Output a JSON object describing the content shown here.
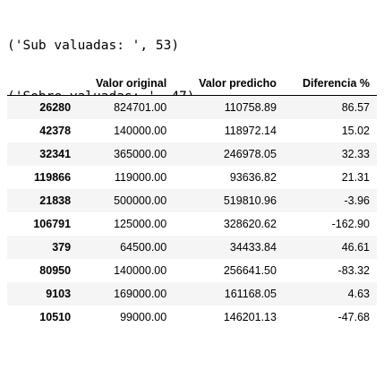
{
  "output": {
    "lines": [
      "('Sub valuadas: ', 53)",
      "('Sobre valuadas: ', 47)"
    ]
  },
  "table": {
    "index_header": "",
    "columns": [
      "Valor original",
      "Valor predicho",
      "Diferencia %"
    ],
    "rows": [
      {
        "index": "26280",
        "values": [
          "824701.00",
          "110758.89",
          "86.57"
        ]
      },
      {
        "index": "42378",
        "values": [
          "140000.00",
          "118972.14",
          "15.02"
        ]
      },
      {
        "index": "32341",
        "values": [
          "365000.00",
          "246978.05",
          "32.33"
        ]
      },
      {
        "index": "119866",
        "values": [
          "119000.00",
          "93636.82",
          "21.31"
        ]
      },
      {
        "index": "21838",
        "values": [
          "500000.00",
          "519810.96",
          "-3.96"
        ]
      },
      {
        "index": "106791",
        "values": [
          "125000.00",
          "328620.62",
          "-162.90"
        ]
      },
      {
        "index": "379",
        "values": [
          "64500.00",
          "34433.84",
          "46.61"
        ]
      },
      {
        "index": "80950",
        "values": [
          "140000.00",
          "256641.50",
          "-83.32"
        ]
      },
      {
        "index": "9103",
        "values": [
          "169000.00",
          "161168.05",
          "4.63"
        ]
      },
      {
        "index": "10510",
        "values": [
          "99000.00",
          "146201.13",
          "-47.68"
        ]
      }
    ]
  }
}
